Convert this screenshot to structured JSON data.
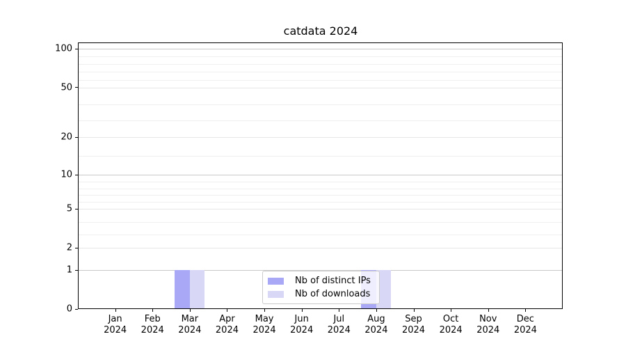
{
  "chart_data": {
    "type": "bar",
    "title": "catdata 2024",
    "categories": [
      "Jan",
      "Feb",
      "Mar",
      "Apr",
      "May",
      "Jun",
      "Jul",
      "Aug",
      "Sep",
      "Oct",
      "Nov",
      "Dec"
    ],
    "category_year": "2024",
    "series": [
      {
        "name": "Nb of distinct IPs",
        "color": "#a8a8f7",
        "values": [
          0,
          0,
          1,
          0,
          0,
          0,
          0,
          1,
          0,
          0,
          0,
          0
        ]
      },
      {
        "name": "Nb of downloads",
        "color": "#d8d8f6",
        "values": [
          0,
          0,
          1,
          0,
          0,
          0,
          0,
          1,
          0,
          0,
          0,
          0
        ]
      }
    ],
    "xlabel": "",
    "ylabel": "",
    "y_scale": "log-like",
    "ylim": [
      0,
      110
    ],
    "y_ticks": [
      0,
      1,
      2,
      5,
      10,
      20,
      50,
      100
    ],
    "y_decade_ticks": [
      1,
      10,
      100
    ],
    "y_minor_gridlines": [
      3,
      4,
      6,
      7,
      8,
      9,
      15,
      30,
      40,
      60,
      70,
      80,
      90
    ],
    "grid": true,
    "legend_position": "lower center"
  }
}
